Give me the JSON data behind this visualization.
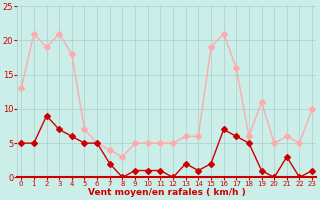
{
  "hours": [
    0,
    1,
    2,
    3,
    4,
    5,
    6,
    7,
    8,
    9,
    10,
    11,
    12,
    13,
    14,
    15,
    16,
    17,
    18,
    19,
    20,
    21,
    22,
    23
  ],
  "avg_wind": [
    5,
    5,
    9,
    7,
    6,
    5,
    5,
    2,
    0,
    1,
    1,
    1,
    0,
    2,
    1,
    2,
    7,
    6,
    5,
    1,
    0,
    3,
    0,
    1
  ],
  "gusts": [
    13,
    21,
    19,
    21,
    18,
    7,
    5,
    4,
    3,
    5,
    5,
    5,
    5,
    6,
    6,
    19,
    21,
    16,
    6,
    11,
    5,
    6,
    5,
    10
  ],
  "xlabel": "Vent moyen/en rafales ( km/h )",
  "xlim": [
    -0.3,
    23.3
  ],
  "ylim": [
    0,
    25
  ],
  "yticks": [
    0,
    5,
    10,
    15,
    20,
    25
  ],
  "xtick_labels": [
    "0",
    "1",
    "2",
    "3",
    "4",
    "5",
    "6",
    "7",
    "8",
    "9",
    "10",
    "11",
    "12",
    "13",
    "14",
    "15",
    "16",
    "17",
    "18",
    "19",
    "20",
    "21",
    "22",
    "23"
  ],
  "avg_color": "#cc0000",
  "gusts_color": "#ffaaaa",
  "bg_color": "#cceee8",
  "grid_color": "#aacccc",
  "label_color": "#cc0000",
  "markersize": 3,
  "linewidth": 1.0
}
